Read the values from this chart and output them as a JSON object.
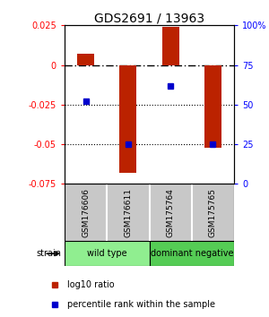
{
  "title": "GDS2691 / 13963",
  "samples": [
    "GSM176606",
    "GSM176611",
    "GSM175764",
    "GSM175765"
  ],
  "log10_ratios": [
    0.007,
    -0.068,
    0.024,
    -0.052
  ],
  "percentile_ranks": [
    52,
    25,
    62,
    25
  ],
  "ylim_left": [
    -0.075,
    0.025
  ],
  "ylim_right": [
    0,
    100
  ],
  "yticks_left": [
    -0.075,
    -0.05,
    -0.025,
    0,
    0.025
  ],
  "ytick_labels_left": [
    "-0.075",
    "-0.05",
    "-0.025",
    "0",
    "0.025"
  ],
  "yticks_right": [
    0,
    25,
    50,
    75,
    100
  ],
  "ytick_labels_right": [
    "0",
    "25",
    "50",
    "75",
    "100%"
  ],
  "dotted_lines": [
    -0.025,
    -0.05
  ],
  "dashdot_line": 0,
  "groups": [
    {
      "label": "wild type",
      "samples": [
        0,
        1
      ],
      "color": "#90ee90"
    },
    {
      "label": "dominant negative",
      "samples": [
        2,
        3
      ],
      "color": "#55cc55"
    }
  ],
  "bar_color": "#bb2200",
  "dot_color": "#0000cc",
  "bg_color": "#ffffff",
  "plot_bg": "#ffffff",
  "sample_box_color": "#c8c8c8",
  "strain_label": "strain",
  "legend_items": [
    {
      "color": "#bb2200",
      "label": "log10 ratio"
    },
    {
      "color": "#0000cc",
      "label": "percentile rank within the sample"
    }
  ]
}
